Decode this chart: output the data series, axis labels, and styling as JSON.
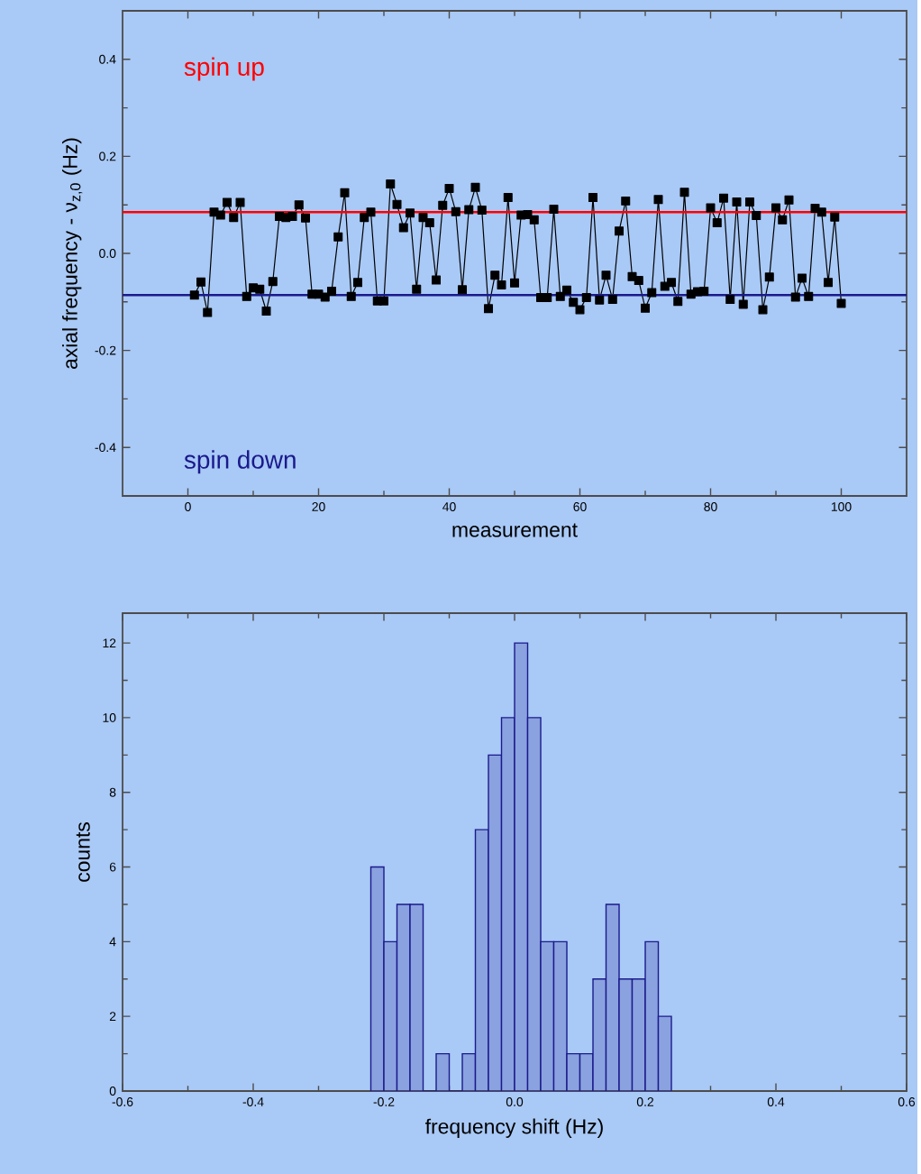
{
  "chart_data": [
    {
      "type": "line",
      "xlabel": "measurement",
      "ylabel": "axial frequency - ν$_{z,0}$ (Hz)",
      "xlim": [
        -10,
        110
      ],
      "xticks": [
        0,
        20,
        40,
        60,
        80,
        100
      ],
      "ylim": [
        -0.5,
        0.5
      ],
      "yticks": [
        {
          "value": -0.4,
          "label": "-0.4"
        },
        {
          "value": -0.2,
          "label": "-0.2"
        },
        {
          "value": 0,
          "label": "0.0"
        },
        {
          "value": 0.2,
          "label": "0.2"
        },
        {
          "value": 0.4,
          "label": "0.4"
        }
      ],
      "marker": "square",
      "line_style": "solid",
      "grid": false,
      "series": [
        {
          "color": "#000000",
          "x": [
            1,
            2,
            3,
            4,
            5,
            6,
            7,
            8,
            9,
            10,
            11,
            12,
            13,
            14,
            15,
            16,
            17,
            18,
            19,
            20,
            21,
            22,
            23,
            24,
            25,
            26,
            27,
            28,
            29,
            30,
            31,
            32,
            33,
            34,
            35,
            36,
            37,
            38,
            39,
            40,
            41,
            42,
            43,
            44,
            45,
            46,
            47,
            48,
            49,
            50,
            51,
            52,
            53,
            54,
            55,
            56,
            57,
            58,
            59,
            60,
            61,
            62,
            63,
            64,
            65,
            66,
            67,
            68,
            69,
            70,
            71,
            72,
            73,
            74,
            75,
            76,
            77,
            78,
            79,
            80,
            81,
            82,
            83,
            84,
            85,
            86,
            87,
            88,
            89,
            90,
            91,
            92,
            93,
            94,
            95,
            96,
            97,
            98,
            99,
            100
          ],
          "values": [
            -0.086,
            -0.059,
            -0.122,
            0.085,
            0.079,
            0.105,
            0.074,
            0.105,
            -0.089,
            -0.071,
            -0.074,
            -0.119,
            -0.058,
            0.076,
            0.074,
            0.076,
            0.1,
            0.073,
            -0.084,
            -0.084,
            -0.09,
            -0.078,
            0.034,
            0.125,
            -0.089,
            -0.06,
            0.074,
            0.085,
            -0.098,
            -0.098,
            0.143,
            0.101,
            0.053,
            0.083,
            -0.074,
            0.074,
            0.063,
            -0.055,
            0.099,
            0.134,
            0.086,
            -0.075,
            0.09,
            0.136,
            0.089,
            -0.114,
            -0.045,
            -0.065,
            0.115,
            -0.061,
            0.079,
            0.08,
            0.069,
            -0.091,
            -0.091,
            0.091,
            -0.089,
            -0.076,
            -0.101,
            -0.116,
            -0.091,
            0.115,
            -0.096,
            -0.045,
            -0.095,
            0.046,
            0.108,
            -0.048,
            -0.056,
            -0.113,
            -0.081,
            0.111,
            -0.068,
            -0.06,
            -0.099,
            0.126,
            -0.084,
            -0.079,
            -0.078,
            0.094,
            0.063,
            0.114,
            -0.095,
            0.106,
            -0.105,
            0.106,
            0.078,
            -0.116,
            -0.049,
            0.094,
            0.069,
            0.11,
            -0.09,
            -0.051,
            -0.089,
            0.093,
            0.085,
            -0.06,
            0.075,
            -0.103
          ]
        }
      ],
      "ref_lines": [
        {
          "axis": "y",
          "value": 0.085,
          "label": "spin up",
          "color": "#ff0000"
        },
        {
          "axis": "y",
          "value": -0.086,
          "label": "spin down",
          "color": "#1a1a8c"
        }
      ]
    },
    {
      "type": "histogram",
      "xlabel": "frequency shift (Hz)",
      "ylabel": "counts",
      "color": "#1a1a8c",
      "xlim": [
        -0.6,
        0.6
      ],
      "xticks": [
        {
          "value": -0.6,
          "label": "-0.6"
        },
        {
          "value": -0.4,
          "label": "-0.4"
        },
        {
          "value": -0.2,
          "label": "-0.2"
        },
        {
          "value": 0,
          "label": "0.0"
        },
        {
          "value": 0.2,
          "label": "0.2"
        },
        {
          "value": 0.4,
          "label": "0.4"
        },
        {
          "value": 0.6,
          "label": "0.6"
        }
      ],
      "ylim": [
        0,
        12.8
      ],
      "yticks": [
        0,
        2,
        4,
        6,
        8,
        10,
        12
      ],
      "grid": false,
      "bins": [
        -0.22,
        -0.2,
        -0.18,
        -0.16,
        -0.14,
        -0.12,
        -0.1,
        -0.08,
        -0.06,
        -0.04,
        -0.02,
        0.0,
        0.02,
        0.04,
        0.06,
        0.08,
        0.1,
        0.12,
        0.14,
        0.16,
        0.18,
        0.2,
        0.22,
        0.24
      ],
      "values": [
        6,
        4,
        5,
        5,
        0,
        1,
        0,
        1,
        7,
        9,
        10,
        12,
        10,
        4,
        4,
        1,
        1,
        3,
        5,
        3,
        3,
        4,
        2
      ]
    }
  ]
}
